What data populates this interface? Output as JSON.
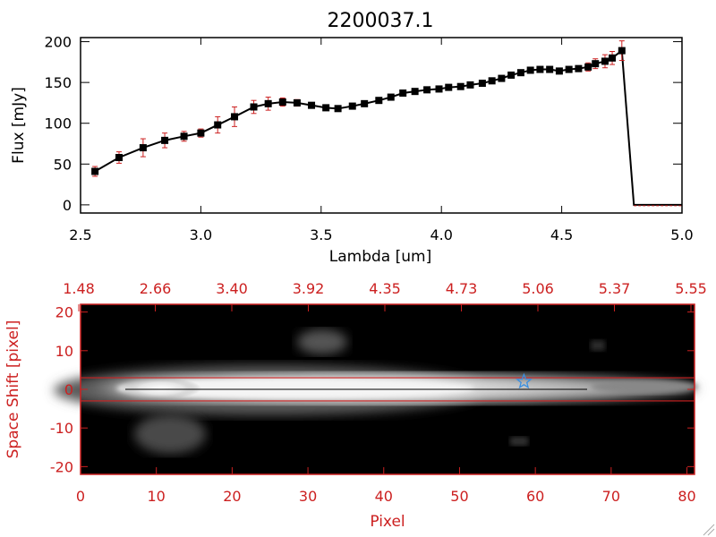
{
  "chart_data": [
    {
      "type": "line",
      "title": "2200037.1",
      "xlabel": "Lambda [um]",
      "ylabel": "Flux [mJy]",
      "xlim": [
        2.5,
        5.0
      ],
      "ylim": [
        -10,
        205
      ],
      "xticks": [
        "2.5",
        "3.0",
        "3.5",
        "4.0",
        "4.5",
        "5.0"
      ],
      "xtick_values": [
        2.5,
        3.0,
        3.5,
        4.0,
        4.5,
        5.0
      ],
      "yticks": [
        "0",
        "50",
        "100",
        "150",
        "200"
      ],
      "ytick_values": [
        0,
        50,
        100,
        150,
        200
      ],
      "line_color": "#000000",
      "marker_color": "#000000",
      "errorbar_color": "#cc2020",
      "x": [
        2.56,
        2.66,
        2.76,
        2.85,
        2.93,
        3.0,
        3.07,
        3.14,
        3.22,
        3.28,
        3.34,
        3.4,
        3.46,
        3.52,
        3.57,
        3.63,
        3.68,
        3.74,
        3.79,
        3.84,
        3.89,
        3.94,
        3.99,
        4.03,
        4.08,
        4.12,
        4.17,
        4.21,
        4.25,
        4.29,
        4.33,
        4.37,
        4.41,
        4.45,
        4.49,
        4.53,
        4.57,
        4.61,
        4.64,
        4.68,
        4.71,
        4.75
      ],
      "y": [
        41,
        58,
        70,
        79,
        84,
        88,
        98,
        108,
        120,
        124,
        126,
        125,
        122,
        119,
        118,
        121,
        124,
        128,
        132,
        137,
        139,
        141,
        142,
        144,
        145,
        147,
        149,
        152,
        155,
        159,
        162,
        165,
        166,
        166,
        164,
        166,
        167,
        169,
        173,
        176,
        180,
        189
      ],
      "err": [
        6,
        7,
        11,
        9,
        6,
        5,
        10,
        12,
        8,
        8,
        5,
        4,
        3,
        3,
        3,
        3,
        3,
        3,
        3,
        3,
        3,
        3,
        3,
        3,
        3,
        3,
        3,
        3,
        3,
        3,
        3,
        3,
        3,
        3,
        3,
        3,
        3,
        5,
        6,
        8,
        8,
        12
      ],
      "drop_to": {
        "x": [
          4.8,
          5.0
        ],
        "y": 0
      }
    },
    {
      "type": "heatmap",
      "xlabel": "Pixel",
      "ylabel": "Space Shift [pixel]",
      "xlim": [
        0,
        81
      ],
      "ylim": [
        -22,
        22
      ],
      "xticks": [
        "0",
        "10",
        "20",
        "30",
        "40",
        "50",
        "60",
        "70",
        "80"
      ],
      "xtick_values": [
        0,
        10,
        20,
        30,
        40,
        50,
        60,
        70,
        80
      ],
      "yticks": [
        "-20",
        "-10",
        "0",
        "10",
        "20"
      ],
      "ytick_values": [
        -20,
        -10,
        0,
        10,
        20
      ],
      "top_axis_ticks": [
        "1.48",
        "2.66",
        "3.40",
        "3.92",
        "4.35",
        "4.73",
        "5.06",
        "5.37",
        "5.55"
      ],
      "label_color": "#cc2020",
      "aperture_lines_y": [
        3,
        -3
      ],
      "center_line_y": 0,
      "star_marker": {
        "x": 58.5,
        "y": 2
      },
      "star_color": "#3a8fe0"
    }
  ]
}
